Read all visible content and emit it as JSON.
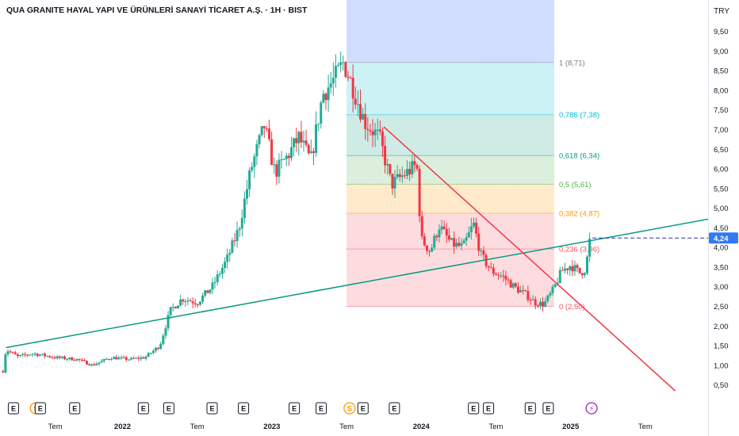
{
  "header": {
    "title": "QUA GRANITE HAYAL YAPI VE ÜRÜNLERİ SANAYİ TİCARET A.Ş. · 1H · BIST",
    "currency": "TRY"
  },
  "colors": {
    "up": "#22ab94",
    "down": "#f23645",
    "trendline_up": "#089981",
    "trendline_down": "#f23645",
    "fib_0": "#f7525f",
    "fib_236": "#f7525f",
    "fib_382": "#ff9800",
    "fib_5": "#4caf50",
    "fib_618": "#089981",
    "fib_786": "#00bcd4",
    "fib_1": "#787b86",
    "fib_top": "#2962ff",
    "last_price_bg": "#3179f5"
  },
  "chart_data": {
    "type": "candlestick",
    "yaxis": {
      "ticks": [
        "0,50",
        "1,00",
        "1,50",
        "2,00",
        "2,50",
        "3,00",
        "3,50",
        "4,00",
        "4,50",
        "5,00",
        "5,50",
        "6,00",
        "6,50",
        "7,00",
        "7,50",
        "8,00",
        "8,50",
        "9,00",
        "9,50"
      ],
      "ylim": [
        0.27,
        10.3
      ]
    },
    "xaxis": {
      "labels": [
        {
          "t": 2021.55,
          "label": "Tem",
          "bold": false
        },
        {
          "t": 2022.0,
          "label": "2022",
          "bold": true
        },
        {
          "t": 2022.5,
          "label": "Tem",
          "bold": false
        },
        {
          "t": 2023.0,
          "label": "2023",
          "bold": true
        },
        {
          "t": 2023.5,
          "label": "Tem",
          "bold": false
        },
        {
          "t": 2024.0,
          "label": "2024",
          "bold": true
        },
        {
          "t": 2024.5,
          "label": "Tem",
          "bold": false
        },
        {
          "t": 2025.0,
          "label": "2025",
          "bold": true
        },
        {
          "t": 2025.5,
          "label": "Tem",
          "bold": false
        }
      ],
      "xlim": [
        2021.18,
        2025.92
      ]
    },
    "price_path": [
      [
        2021.2,
        0.85
      ],
      [
        2021.22,
        1.4
      ],
      [
        2021.3,
        1.22
      ],
      [
        2021.4,
        1.3
      ],
      [
        2021.55,
        1.2
      ],
      [
        2021.7,
        1.15
      ],
      [
        2021.8,
        1.0
      ],
      [
        2021.92,
        1.2
      ],
      [
        2022.05,
        1.15
      ],
      [
        2022.15,
        1.2
      ],
      [
        2022.25,
        1.5
      ],
      [
        2022.32,
        2.4
      ],
      [
        2022.4,
        2.7
      ],
      [
        2022.5,
        2.6
      ],
      [
        2022.6,
        3.0
      ],
      [
        2022.7,
        3.7
      ],
      [
        2022.78,
        4.5
      ],
      [
        2022.86,
        6.0
      ],
      [
        2022.95,
        7.1
      ],
      [
        2023.02,
        5.9
      ],
      [
        2023.1,
        6.3
      ],
      [
        2023.18,
        6.8
      ],
      [
        2023.26,
        6.2
      ],
      [
        2023.34,
        7.9
      ],
      [
        2023.42,
        8.3
      ],
      [
        2023.48,
        8.71
      ],
      [
        2023.55,
        8.0
      ],
      [
        2023.62,
        7.2
      ],
      [
        2023.72,
        6.8
      ],
      [
        2023.8,
        5.6
      ],
      [
        2023.9,
        5.9
      ],
      [
        2023.97,
        6.1
      ],
      [
        2024.0,
        4.2
      ],
      [
        2024.06,
        3.9
      ],
      [
        2024.12,
        4.55
      ],
      [
        2024.2,
        4.1
      ],
      [
        2024.28,
        4.0
      ],
      [
        2024.35,
        4.6
      ],
      [
        2024.4,
        3.8
      ],
      [
        2024.47,
        3.4
      ],
      [
        2024.55,
        3.25
      ],
      [
        2024.62,
        3.0
      ],
      [
        2024.7,
        2.8
      ],
      [
        2024.76,
        2.6
      ],
      [
        2024.82,
        2.55
      ],
      [
        2024.88,
        2.9
      ],
      [
        2024.94,
        3.4
      ],
      [
        2025.0,
        3.55
      ],
      [
        2025.06,
        3.35
      ],
      [
        2025.1,
        3.45
      ],
      [
        2025.13,
        4.24
      ]
    ],
    "last_price": 4.24,
    "last_price_label": "4,24",
    "fibonacci": {
      "range_years": [
        2023.5,
        2024.89
      ],
      "top_extension": 9.5,
      "levels": [
        {
          "ratio": 1,
          "value": 8.71,
          "label": "1 (8,71)",
          "key": "fib_1"
        },
        {
          "ratio": 0.786,
          "value": 7.38,
          "label": "0,786 (7,38)",
          "key": "fib_786"
        },
        {
          "ratio": 0.618,
          "value": 6.34,
          "label": "0,618 (6,34)",
          "key": "fib_618"
        },
        {
          "ratio": 0.5,
          "value": 5.61,
          "label": "0,5 (5,61)",
          "key": "fib_5"
        },
        {
          "ratio": 0.382,
          "value": 4.87,
          "label": "0,382 (4,87)",
          "key": "fib_382"
        },
        {
          "ratio": 0.236,
          "value": 3.96,
          "label": "0,236 (3,96)",
          "key": "fib_236"
        },
        {
          "ratio": 0,
          "value": 2.5,
          "label": "0 (2,50)",
          "key": "fib_0"
        }
      ]
    },
    "trendlines": [
      {
        "name": "",
        "color_key": "trendline_up",
        "points": [
          [
            2021.22,
            1.45
          ],
          [
            2025.92,
            4.72
          ]
        ]
      },
      {
        "name": "",
        "color_key": "trendline_down",
        "points": [
          [
            2023.75,
            7.07
          ],
          [
            2025.7,
            0.35
          ]
        ]
      }
    ],
    "events": [
      {
        "t": 2021.27,
        "kind": "E"
      },
      {
        "t": 2021.42,
        "kind": "dividend"
      },
      {
        "t": 2021.45,
        "kind": "E"
      },
      {
        "t": 2021.68,
        "kind": "E"
      },
      {
        "t": 2022.14,
        "kind": "E"
      },
      {
        "t": 2022.31,
        "kind": "E"
      },
      {
        "t": 2022.6,
        "kind": "E"
      },
      {
        "t": 2022.81,
        "kind": "E"
      },
      {
        "t": 2023.15,
        "kind": "E"
      },
      {
        "t": 2023.33,
        "kind": "E"
      },
      {
        "t": 2023.52,
        "kind": "dividend"
      },
      {
        "t": 2023.61,
        "kind": "E"
      },
      {
        "t": 2023.82,
        "kind": "E"
      },
      {
        "t": 2024.35,
        "kind": "E"
      },
      {
        "t": 2024.45,
        "kind": "E"
      },
      {
        "t": 2024.73,
        "kind": "E"
      },
      {
        "t": 2024.85,
        "kind": "E"
      },
      {
        "t": 2025.14,
        "kind": "split"
      }
    ],
    "event_glyphs": {
      "E": "E",
      "dividend": "S",
      "split": "⚡"
    }
  }
}
